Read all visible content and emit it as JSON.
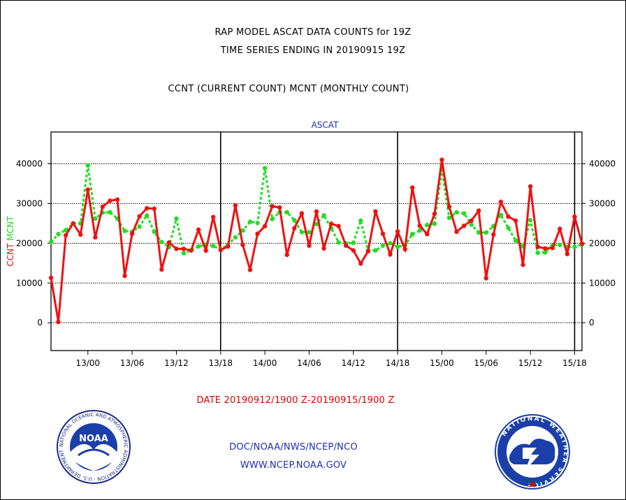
{
  "header": {
    "title_line1": "RAP MODEL ASCAT DATA COUNTS for 19Z",
    "title_line2": "TIME SERIES ENDING IN 20190915 19Z",
    "subtitle": "CCNT (CURRENT COUNT) MCNT (MONTHLY COUNT)"
  },
  "footer": {
    "date_range": "DATE 20190912/1900 Z-20190915/1900 Z",
    "agency": "DOC/NOAA/NWS/NCEP/NCO",
    "website": "WWW.NCEP.NOAA.GOV"
  },
  "logos": {
    "left_text": "NOAA",
    "left_ring": "NATIONAL OCEANIC AND ATMOSPHERIC ADMINISTRATION · U.S. DEPARTMENT OF COMMERCE",
    "right_ring": "NATIONAL WEATHER SERVICE"
  },
  "colors": {
    "ccnt": "#ee1111",
    "mcnt": "#22dd22",
    "panel_title": "#1d2fb5",
    "footer_text": "#1d2fb5",
    "date_text": "#e00000"
  },
  "chart_data": {
    "type": "line",
    "title": "ASCAT",
    "ylabel_left": [
      "CCNT",
      "MCNT"
    ],
    "ylim": [
      -7000,
      48000
    ],
    "yticks": [
      0,
      10000,
      20000,
      30000,
      40000
    ],
    "ytick_labels": [
      "0",
      "10000",
      "20000",
      "30000",
      "40000"
    ],
    "xlim": [
      0,
      72
    ],
    "xticks": [
      5,
      11,
      17,
      23,
      29,
      35,
      41,
      47,
      53,
      59,
      65,
      71
    ],
    "xtick_labels": [
      "13/00",
      "13/06",
      "13/12",
      "13/18",
      "14/00",
      "14/06",
      "14/12",
      "14/18",
      "15/00",
      "15/06",
      "15/12",
      "15/18"
    ],
    "day_dividers": [
      23,
      47,
      71
    ],
    "grid": true,
    "series": [
      {
        "name": "CCNT",
        "values": [
          11300,
          200,
          22000,
          25000,
          22200,
          33500,
          21500,
          29200,
          30700,
          31000,
          11800,
          22400,
          26800,
          28800,
          28700,
          13400,
          20200,
          18600,
          18600,
          18200,
          23400,
          18200,
          26600,
          18300,
          19200,
          29500,
          19600,
          13300,
          22400,
          24300,
          29300,
          29000,
          17100,
          23800,
          27500,
          19400,
          28000,
          18700,
          24900,
          24300,
          19400,
          18200,
          14900,
          18000,
          28000,
          22400,
          17200,
          23000,
          18500,
          34000,
          24400,
          22300,
          27400,
          41000,
          29200,
          22900,
          24400,
          25700,
          28200,
          11200,
          22200,
          30400,
          26700,
          25700,
          14600,
          34300,
          19100,
          18700,
          18800,
          23600,
          17300,
          26700,
          19900
        ]
      },
      {
        "name": "MCNT",
        "values": [
          20300,
          22300,
          23300,
          25000,
          25000,
          39600,
          26200,
          27700,
          27800,
          26200,
          23100,
          22900,
          24200,
          27000,
          22900,
          20300,
          19000,
          26200,
          17500,
          18200,
          19200,
          19700,
          19300,
          18500,
          19600,
          21500,
          23200,
          25400,
          25100,
          38900,
          26100,
          27800,
          27800,
          25800,
          22800,
          22800,
          24800,
          27000,
          23800,
          20200,
          20000,
          20100,
          25700,
          18200,
          18200,
          19400,
          20000,
          19100,
          19500,
          22300,
          23200,
          24600,
          24900,
          38500,
          26400,
          27800,
          27500,
          24700,
          22700,
          22700,
          24300,
          27100,
          23900,
          20700,
          19200,
          25800,
          17600,
          17700,
          19400,
          19600,
          19100,
          19100,
          19700
        ]
      }
    ]
  }
}
